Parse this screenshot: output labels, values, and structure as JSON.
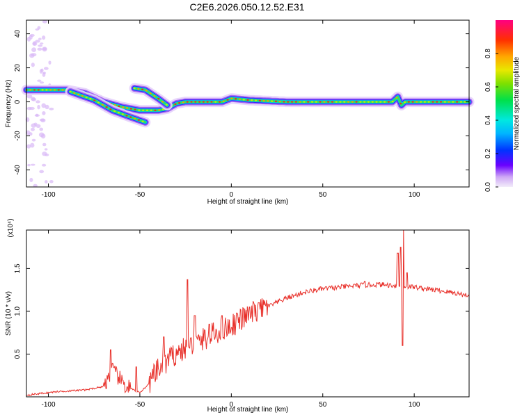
{
  "title": "C2E6.2026.050.12.52.E31",
  "chart_data": [
    {
      "type": "heatmap",
      "xlabel": "Height of straight line (km)",
      "ylabel": "Frequency (Hz)",
      "xlim": [
        -112,
        130
      ],
      "ylim": [
        -50,
        48
      ],
      "xticks": [
        -100,
        -50,
        0,
        50,
        100
      ],
      "yticks": [
        40,
        20,
        0,
        -20,
        -40
      ],
      "colorbar": {
        "label": "Normalized spectral amplitude",
        "range": [
          0,
          1
        ],
        "ticks": [
          "0.0",
          "0.2",
          "0.4",
          "0.6",
          "0.8"
        ]
      },
      "ridges": [
        {
          "name": "main",
          "points": [
            [
              -112,
              7
            ],
            [
              -90,
              7
            ],
            [
              -80,
              5
            ],
            [
              -70,
              0
            ],
            [
              -60,
              -3
            ],
            [
              -50,
              -5
            ],
            [
              -40,
              -5
            ],
            [
              -35,
              -4
            ],
            [
              -30,
              -1
            ],
            [
              -25,
              0
            ],
            [
              -10,
              0
            ],
            [
              -5,
              0
            ],
            [
              0,
              2
            ],
            [
              10,
              1
            ],
            [
              30,
              0
            ],
            [
              60,
              0
            ],
            [
              88,
              0
            ],
            [
              91,
              3
            ],
            [
              93,
              -2
            ],
            [
              95,
              0
            ],
            [
              130,
              0
            ]
          ]
        },
        {
          "name": "lower",
          "points": [
            [
              -88,
              6
            ],
            [
              -75,
              1
            ],
            [
              -65,
              -5
            ],
            [
              -55,
              -9
            ],
            [
              -47,
              -12
            ]
          ]
        },
        {
          "name": "upper",
          "points": [
            [
              -53,
              8
            ],
            [
              -47,
              7
            ],
            [
              -40,
              2
            ],
            [
              -35,
              -2
            ]
          ]
        }
      ]
    },
    {
      "type": "line",
      "xlabel": "Height of straight line (km)",
      "ylabel": "SNR (10 * v/v)",
      "yscale_label": "(x10⁴)",
      "xlim": [
        -112,
        130
      ],
      "ylim": [
        0,
        1.95
      ],
      "xticks": [
        -100,
        -50,
        0,
        50,
        100
      ],
      "yticks": [
        "0.5",
        "1.0",
        "1.5"
      ],
      "color": "#e8302a",
      "trend": [
        [
          -112,
          0.02
        ],
        [
          -95,
          0.06
        ],
        [
          -80,
          0.08
        ],
        [
          -70,
          0.12
        ],
        [
          -65,
          0.3
        ],
        [
          -58,
          0.12
        ],
        [
          -50,
          0.05
        ],
        [
          -45,
          0.15
        ],
        [
          -40,
          0.3
        ],
        [
          -30,
          0.5
        ],
        [
          -20,
          0.6
        ],
        [
          -10,
          0.72
        ],
        [
          0,
          0.82
        ],
        [
          10,
          0.95
        ],
        [
          20,
          1.05
        ],
        [
          30,
          1.15
        ],
        [
          40,
          1.22
        ],
        [
          50,
          1.26
        ],
        [
          60,
          1.28
        ],
        [
          70,
          1.3
        ],
        [
          80,
          1.31
        ],
        [
          90,
          1.3
        ],
        [
          100,
          1.28
        ],
        [
          110,
          1.25
        ],
        [
          120,
          1.22
        ],
        [
          130,
          1.18
        ]
      ],
      "spikes": [
        [
          -66,
          0.55
        ],
        [
          -52,
          0.35
        ],
        [
          -37,
          0.7
        ],
        [
          -24,
          1.37
        ],
        [
          -20,
          0.95
        ],
        [
          -12,
          0.85
        ],
        [
          -5,
          0.95
        ],
        [
          3,
          0.98
        ],
        [
          10,
          1.05
        ],
        [
          15,
          1.1
        ],
        [
          73,
          1.35
        ],
        [
          91,
          1.68
        ],
        [
          92.5,
          1.75
        ],
        [
          94,
          1.95
        ],
        [
          93.5,
          0.6
        ],
        [
          96,
          1.45
        ]
      ]
    }
  ]
}
